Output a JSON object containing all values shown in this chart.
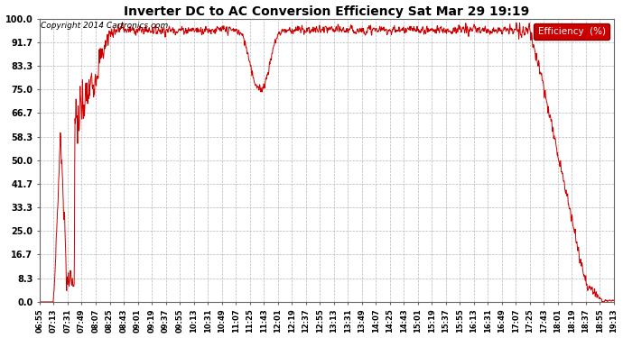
{
  "title": "Inverter DC to AC Conversion Efficiency Sat Mar 29 19:19",
  "copyright": "Copyright 2014 Cartronics.com",
  "legend_label": "Efficiency  (%)",
  "line_color": "#cc0000",
  "background_color": "#ffffff",
  "grid_color": "#b0b0b0",
  "legend_bg": "#cc0000",
  "legend_text_color": "#ffffff",
  "ylim": [
    0.0,
    100.0
  ],
  "yticks": [
    0.0,
    8.3,
    16.7,
    25.0,
    33.3,
    41.7,
    50.0,
    58.3,
    66.7,
    75.0,
    83.3,
    91.7,
    100.0
  ],
  "xtick_labels": [
    "06:55",
    "07:13",
    "07:31",
    "07:49",
    "08:07",
    "08:25",
    "08:43",
    "09:01",
    "09:19",
    "09:37",
    "09:55",
    "10:13",
    "10:31",
    "10:49",
    "11:07",
    "11:25",
    "11:43",
    "12:01",
    "12:19",
    "12:37",
    "12:55",
    "13:13",
    "13:31",
    "13:49",
    "14:07",
    "14:25",
    "14:43",
    "15:01",
    "15:19",
    "15:37",
    "15:55",
    "16:13",
    "16:31",
    "16:49",
    "17:07",
    "17:25",
    "17:43",
    "18:01",
    "18:19",
    "18:37",
    "18:55",
    "19:13"
  ],
  "n_points": 2000
}
